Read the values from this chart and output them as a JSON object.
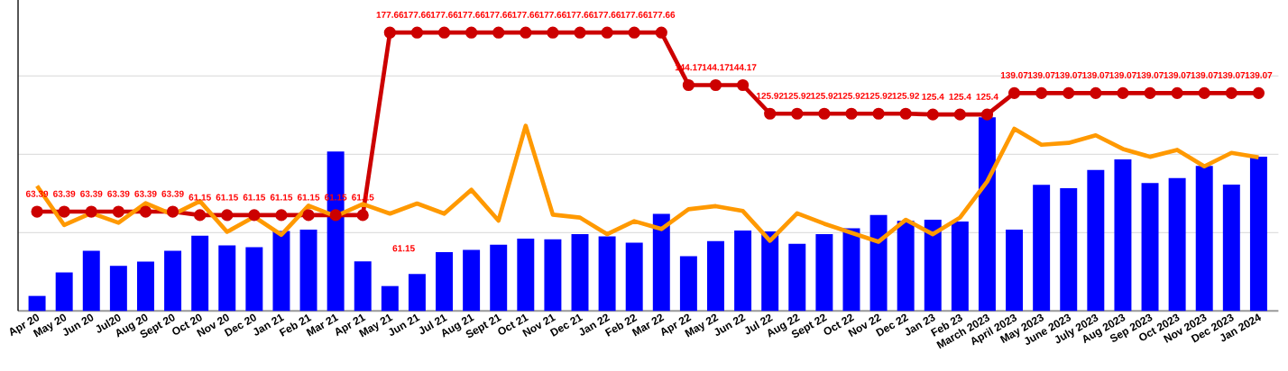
{
  "chart_data": {
    "type": "bar",
    "categories": [
      "Apr 20",
      "May 20",
      "Jun 20",
      "Jul20",
      "Aug 20",
      "Sept 20",
      "Oct 20",
      "Nov 20",
      "Dec 20",
      "Jan 21",
      "Feb 21",
      "Mar 21",
      "Apr 21",
      "May 21",
      "Jun 21",
      "Jul 21",
      "Aug 21",
      "Sept 21",
      "Oct 21",
      "Nov 21",
      "Dec 21",
      "Jan 22",
      "Feb 22",
      "Mar 22",
      "Apr 22",
      "May 22",
      "Jun 22",
      "Jul 22",
      "Aug 22",
      "Sept 22",
      "Oct 22",
      "Nov 22",
      "Dec 22",
      "Jan 23",
      "Feb 23",
      "March 2023",
      "April 2023",
      "May 2023",
      "June 2023",
      "July 2023",
      "Aug 2023",
      "Sep 2023",
      "Oct 2023",
      "Nov 2023",
      "Dec 2023",
      "Jan 2024"
    ],
    "series": [
      {
        "color": "#0000ff",
        "values": [
          9.6,
          24.6,
          38.4,
          28.8,
          31.5,
          38.4,
          48.0,
          41.9,
          40.7,
          51,
          51.9,
          101.8,
          31.7,
          15.9,
          23.6,
          37.5,
          39.0,
          42.3,
          46.1,
          45.7,
          49.0,
          47.6,
          43.6,
          62.0,
          34.9,
          44.6,
          51.3,
          50.7,
          42.8,
          49.0,
          52.8,
          61.3,
          57.5,
          58.2,
          57.1,
          123.6,
          51.9,
          80.5,
          78.4,
          90,
          96.7,
          81.7,
          84.8,
          92.6,
          80.7,
          98.4
        ]
      },
      {
        "type": "line",
        "color": "#cc0000",
        "marker": "circle",
        "values": [
          63.39,
          63.39,
          63.39,
          63.39,
          63.39,
          63.39,
          61.15,
          61.15,
          61.15,
          61.15,
          61.15,
          61.15,
          61.15,
          177.66,
          177.66,
          177.66,
          177.66,
          177.66,
          177.66,
          177.66,
          177.66,
          177.66,
          177.66,
          177.66,
          144.17,
          144.17,
          144.17,
          125.92,
          125.92,
          125.92,
          125.92,
          125.92,
          125.92,
          125.4,
          125.4,
          125.4,
          139.07,
          139.07,
          139.07,
          139.07,
          139.07,
          139.07,
          139.07,
          139.07,
          139.07,
          139.07
        ],
        "value_labels": [
          "63.39",
          "63.39",
          "63.39",
          "63.39",
          "63.39",
          "63.39",
          "61.15",
          "61.15",
          "61.15",
          "61.15",
          "61.15",
          "61.15",
          "61.15",
          "177.66",
          "177.66",
          "177.66",
          "177.66",
          "177.66",
          "177.66",
          "177.66",
          "177.66",
          "177.66",
          "177.66",
          "177.66",
          "144.17",
          "144.17",
          "144.17",
          "125.92",
          "125.92",
          "125.92",
          "125.92",
          "125.92",
          "125.92",
          "125.4",
          "125.4",
          "125.4",
          "139.07",
          "139.07",
          "139.07",
          "139.07",
          "139.07",
          "139.07",
          "139.07",
          "139.07",
          "139.07",
          "139.07"
        ]
      },
      {
        "type": "line",
        "color": "#ff9900",
        "marker": "none",
        "values": [
          79.8,
          54.8,
          62.5,
          56.3,
          68.8,
          61.5,
          70.1,
          50.5,
          60.1,
          48.6,
          67.2,
          60.5,
          68.2,
          62.1,
          68.6,
          62.1,
          77.3,
          57.7,
          118.2,
          61.5,
          59.6,
          49.0,
          57.3,
          52.3,
          64.9,
          66.9,
          63.8,
          44.8,
          62.3,
          55.7,
          49.9,
          44.2,
          58.2,
          49.0,
          59.6,
          82.6,
          116.3,
          106.1,
          107.3,
          112.1,
          103.4,
          98.4,
          102.8,
          92.3,
          100.9,
          98.0
        ]
      }
    ],
    "annotations": [
      "61.15"
    ],
    "ylim": [
      0,
      200
    ],
    "yticks": [
      {
        "value": 50,
        "label": null
      },
      {
        "value": 100,
        "label": null
      },
      {
        "value": 150,
        "label": null
      }
    ],
    "grid": "y",
    "tick_labels": "x"
  }
}
